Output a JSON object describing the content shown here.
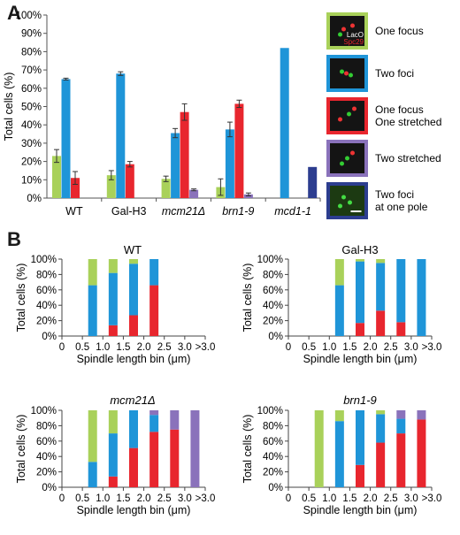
{
  "figure": {
    "panel_a_letter": "A",
    "panel_b_letter": "B",
    "colors": {
      "one_focus": "#a9d15a",
      "two_foci": "#1f95d8",
      "one_focus_one_stretched": "#e8262e",
      "two_stretched": "#8a72bb",
      "two_foci_one_pole": "#2c3d8f"
    },
    "legend": [
      {
        "label": "One focus",
        "frame_color": "#a9d15a",
        "image_labels": [
          "LacO",
          "Spc29"
        ]
      },
      {
        "label": "Two foci",
        "frame_color": "#1f95d8"
      },
      {
        "label": "One focus One stretched",
        "frame_color": "#e8262e"
      },
      {
        "label": "Two stretched",
        "frame_color": "#8a72bb"
      },
      {
        "label": "Two foci at one pole",
        "frame_color": "#2c3d8f"
      }
    ]
  },
  "chart_data": [
    {
      "type": "bar",
      "ylabel": "Total cells (%)",
      "ylim": [
        0,
        100
      ],
      "y_ticks": [
        "0%",
        "10%",
        "20%",
        "30%",
        "40%",
        "50%",
        "60%",
        "70%",
        "80%",
        "90%",
        "100%"
      ],
      "categories": [
        "WT",
        "Gal-H3",
        "mcm21Δ",
        "brn1-9",
        "mcd1-1"
      ],
      "category_italic": [
        false,
        false,
        true,
        true,
        true
      ],
      "series": [
        {
          "name": "One focus",
          "values": [
            23,
            12.5,
            10.5,
            6,
            0
          ],
          "errors": [
            3.5,
            2.5,
            1.5,
            4.5,
            0
          ]
        },
        {
          "name": "Two foci",
          "values": [
            65,
            68,
            35.5,
            37.5,
            82
          ],
          "errors": [
            0.5,
            1,
            2.5,
            4,
            0
          ]
        },
        {
          "name": "One focus One stretched",
          "values": [
            11,
            18.5,
            47,
            51.5,
            0
          ],
          "errors": [
            3.5,
            1.5,
            4.5,
            2,
            0
          ]
        },
        {
          "name": "Two stretched",
          "values": [
            0,
            0,
            4.5,
            2,
            0
          ],
          "errors": [
            0,
            0,
            0.5,
            0.8,
            0
          ]
        },
        {
          "name": "Two foci at one pole",
          "values": [
            0,
            0,
            0,
            0,
            17
          ],
          "errors": [
            0,
            0,
            0,
            0,
            0
          ]
        }
      ]
    },
    {
      "type": "bar",
      "stacked": true,
      "title": "WT",
      "title_italic": false,
      "ylabel": "Total cells (%)",
      "xlabel": "Spindle length bin (μm)",
      "x_ticks": [
        "0",
        "0.5",
        "1.0",
        "1.5",
        "2.0",
        "2.5",
        "3.0",
        ">3.0"
      ],
      "y_ticks": [
        "0%",
        "20%",
        "40%",
        "60%",
        "80%",
        "100%"
      ],
      "bins": [
        {
          "x": 0.75,
          "one_focus_one_stretched": 0,
          "two_foci": 66,
          "one_focus": 34,
          "two_stretched": 0
        },
        {
          "x": 1.25,
          "one_focus_one_stretched": 14,
          "two_foci": 68,
          "one_focus": 18,
          "two_stretched": 0
        },
        {
          "x": 1.75,
          "one_focus_one_stretched": 27,
          "two_foci": 67,
          "one_focus": 6,
          "two_stretched": 0
        },
        {
          "x": 2.25,
          "one_focus_one_stretched": 66,
          "two_foci": 34,
          "one_focus": 0,
          "two_stretched": 0
        }
      ]
    },
    {
      "type": "bar",
      "stacked": true,
      "title": "Gal-H3",
      "title_italic": false,
      "ylabel": "Total cells (%)",
      "xlabel": "Spindle length bin (μm)",
      "x_ticks": [
        "0",
        "0.5",
        "1.0",
        "1.5",
        "2.0",
        "2.5",
        "3.0",
        ">3.0"
      ],
      "y_ticks": [
        "0%",
        "20%",
        "40%",
        "60%",
        "80%",
        "100%"
      ],
      "bins": [
        {
          "x": 1.25,
          "one_focus_one_stretched": 0,
          "two_foci": 66,
          "one_focus": 34,
          "two_stretched": 0
        },
        {
          "x": 1.75,
          "one_focus_one_stretched": 17,
          "two_foci": 80,
          "one_focus": 3,
          "two_stretched": 0
        },
        {
          "x": 2.25,
          "one_focus_one_stretched": 33,
          "two_foci": 62,
          "one_focus": 5,
          "two_stretched": 0
        },
        {
          "x": 2.75,
          "one_focus_one_stretched": 18,
          "two_foci": 82,
          "one_focus": 0,
          "two_stretched": 0
        },
        {
          "x": 3.25,
          "one_focus_one_stretched": 0,
          "two_foci": 100,
          "one_focus": 0,
          "two_stretched": 0
        }
      ]
    },
    {
      "type": "bar",
      "stacked": true,
      "title": "mcm21Δ",
      "title_italic": true,
      "ylabel": "Total cells (%)",
      "xlabel": "Spindle length bin (μm)",
      "x_ticks": [
        "0",
        "0.5",
        "1.0",
        "1.5",
        "2.0",
        "2.5",
        "3.0",
        ">3.0"
      ],
      "y_ticks": [
        "0%",
        "20%",
        "40%",
        "60%",
        "80%",
        "100%"
      ],
      "bins": [
        {
          "x": 0.75,
          "one_focus_one_stretched": 0,
          "two_foci": 33,
          "one_focus": 67,
          "two_stretched": 0
        },
        {
          "x": 1.25,
          "one_focus_one_stretched": 14,
          "two_foci": 56,
          "one_focus": 30,
          "two_stretched": 0
        },
        {
          "x": 1.75,
          "one_focus_one_stretched": 51,
          "two_foci": 49,
          "one_focus": 0,
          "two_stretched": 0
        },
        {
          "x": 2.25,
          "one_focus_one_stretched": 72,
          "two_foci": 22,
          "one_focus": 0,
          "two_stretched": 6
        },
        {
          "x": 2.75,
          "one_focus_one_stretched": 75,
          "two_foci": 0,
          "one_focus": 0,
          "two_stretched": 25
        },
        {
          "x": 3.25,
          "one_focus_one_stretched": 0,
          "two_foci": 0,
          "one_focus": 0,
          "two_stretched": 100
        }
      ]
    },
    {
      "type": "bar",
      "stacked": true,
      "title": "brn1-9",
      "title_italic": true,
      "ylabel": "Total cells (%)",
      "xlabel": "Spindle length bin (μm)",
      "x_ticks": [
        "0",
        "0.5",
        "1.0",
        "1.5",
        "2.0",
        "2.5",
        "3.0",
        ">3.0"
      ],
      "y_ticks": [
        "0%",
        "20%",
        "40%",
        "60%",
        "80%",
        "100%"
      ],
      "bins": [
        {
          "x": 0.75,
          "one_focus_one_stretched": 0,
          "two_foci": 0,
          "one_focus": 100,
          "two_stretched": 0
        },
        {
          "x": 1.25,
          "one_focus_one_stretched": 0,
          "two_foci": 86,
          "one_focus": 14,
          "two_stretched": 0
        },
        {
          "x": 1.75,
          "one_focus_one_stretched": 29,
          "two_foci": 71,
          "one_focus": 0,
          "two_stretched": 0
        },
        {
          "x": 2.25,
          "one_focus_one_stretched": 58,
          "two_foci": 37,
          "one_focus": 5,
          "two_stretched": 0
        },
        {
          "x": 2.75,
          "one_focus_one_stretched": 70,
          "two_foci": 19,
          "one_focus": 0,
          "two_stretched": 11
        },
        {
          "x": 3.25,
          "one_focus_one_stretched": 88,
          "two_foci": 0,
          "one_focus": 0,
          "two_stretched": 12
        }
      ]
    }
  ]
}
